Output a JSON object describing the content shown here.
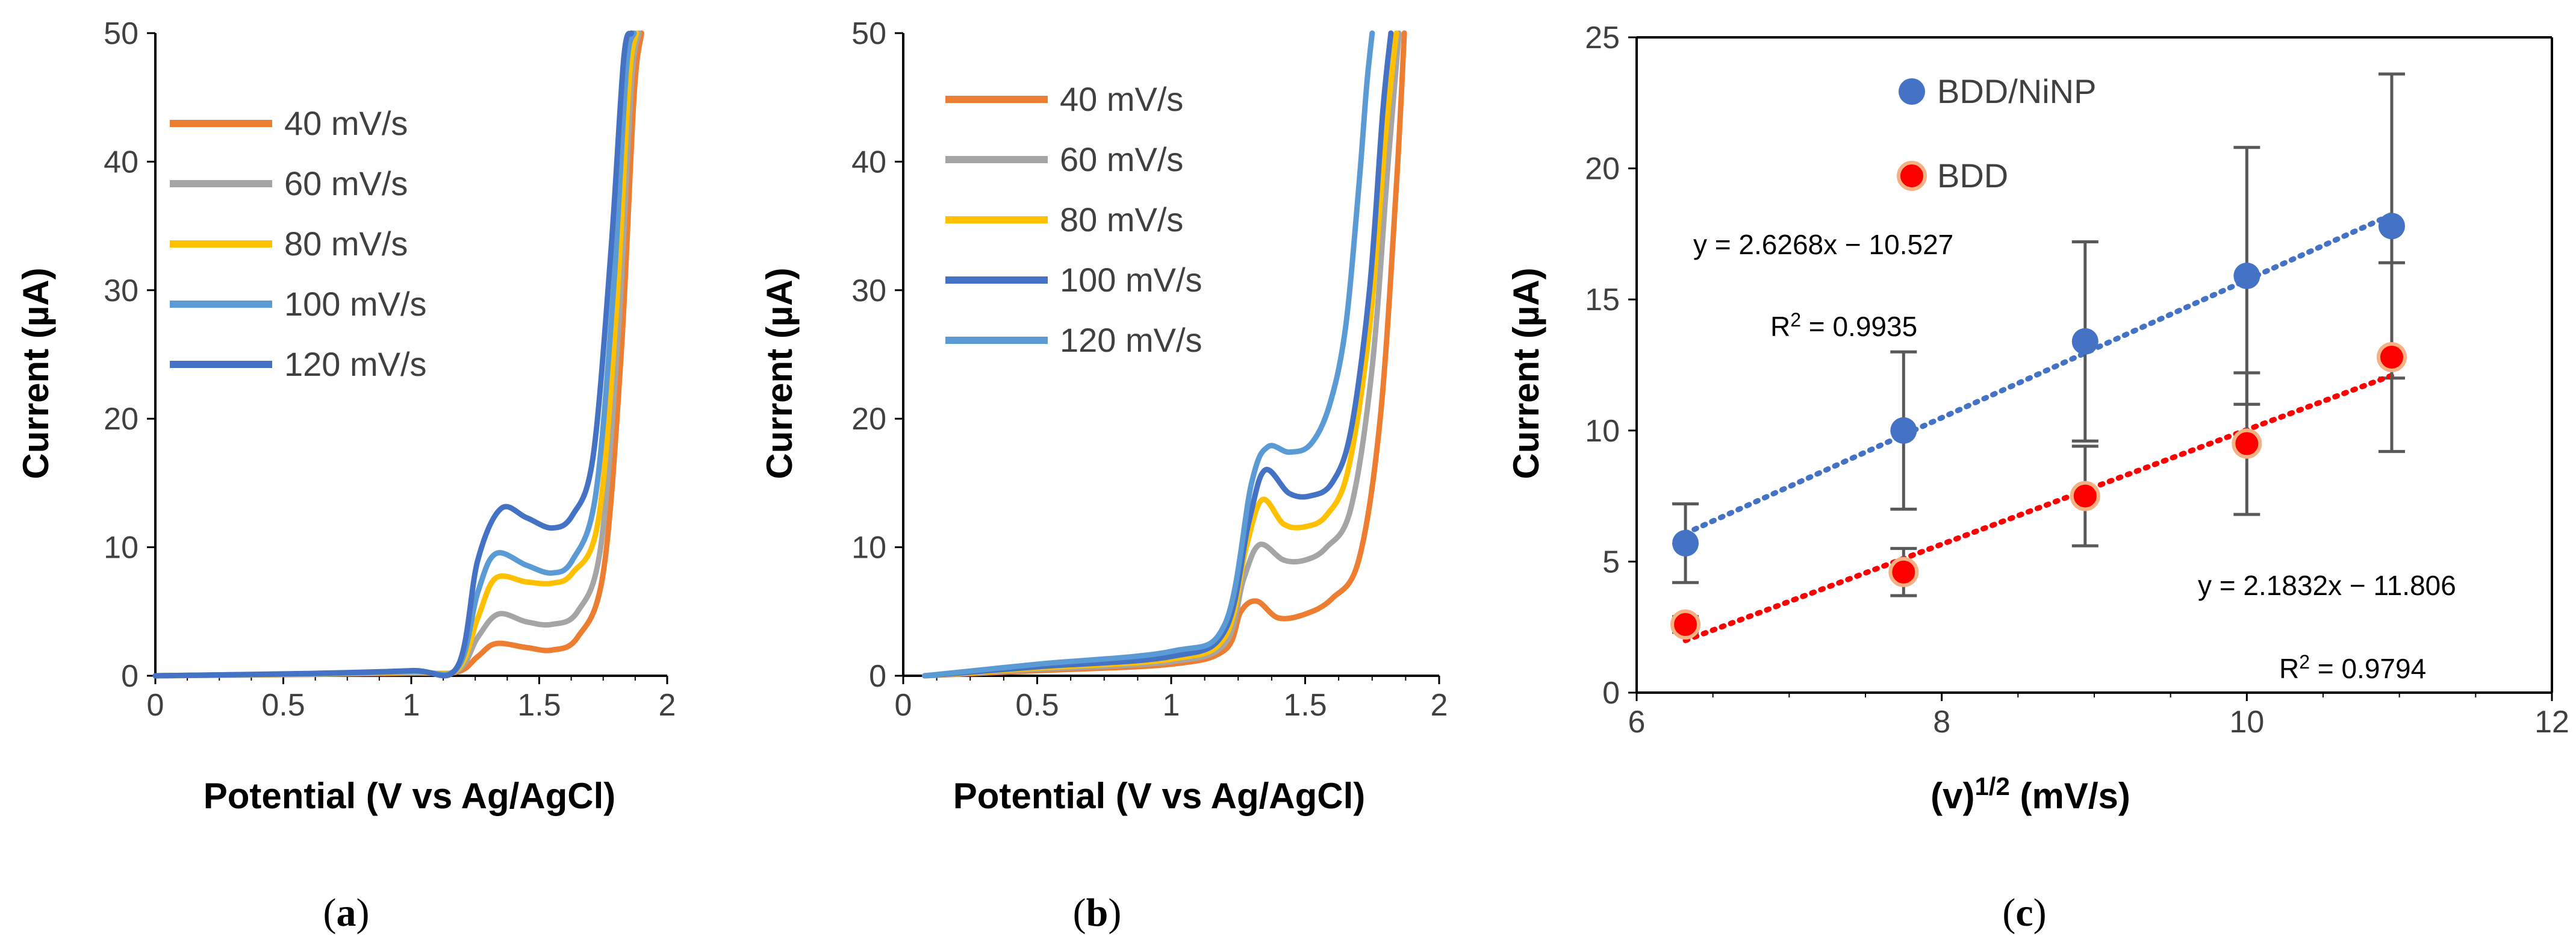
{
  "chart_data": [
    {
      "type": "line",
      "panel_label": "a",
      "xlabel": "Potential (V vs Ag/AgCl)",
      "ylabel": "Current (µA)",
      "xlim": [
        0,
        2
      ],
      "ylim": [
        0,
        50
      ],
      "x_ticks": [
        "0",
        "0.5",
        "1",
        "1.5",
        "2"
      ],
      "y_ticks": [
        "0",
        "10",
        "20",
        "30",
        "40",
        "50"
      ],
      "legend_position": "top-left",
      "series": [
        {
          "name": "40 mV/s",
          "color": "#ED7D31",
          "points": [
            [
              0,
              0
            ],
            [
              0.6,
              0.1
            ],
            [
              1.0,
              0.2
            ],
            [
              1.18,
              0.3
            ],
            [
              1.26,
              1.5
            ],
            [
              1.33,
              2.5
            ],
            [
              1.45,
              2.2
            ],
            [
              1.55,
              2.0
            ],
            [
              1.65,
              3.0
            ],
            [
              1.75,
              8
            ],
            [
              1.82,
              25
            ],
            [
              1.87,
              45
            ],
            [
              1.9,
              50
            ]
          ]
        },
        {
          "name": "60 mV/s",
          "color": "#A5A5A5",
          "points": [
            [
              0,
              0
            ],
            [
              0.6,
              0.12
            ],
            [
              1.0,
              0.25
            ],
            [
              1.18,
              0.4
            ],
            [
              1.26,
              3.0
            ],
            [
              1.34,
              4.8
            ],
            [
              1.45,
              4.2
            ],
            [
              1.55,
              4.0
            ],
            [
              1.65,
              5.0
            ],
            [
              1.74,
              10
            ],
            [
              1.81,
              27
            ],
            [
              1.86,
              46
            ],
            [
              1.89,
              50
            ]
          ]
        },
        {
          "name": "80 mV/s",
          "color": "#FFC000",
          "points": [
            [
              0,
              0
            ],
            [
              0.6,
              0.14
            ],
            [
              1.0,
              0.3
            ],
            [
              1.18,
              0.5
            ],
            [
              1.26,
              4.5
            ],
            [
              1.33,
              7.6
            ],
            [
              1.45,
              7.3
            ],
            [
              1.55,
              7.2
            ],
            [
              1.63,
              8
            ],
            [
              1.73,
              12
            ],
            [
              1.8,
              28
            ],
            [
              1.85,
              46
            ],
            [
              1.88,
              50
            ]
          ]
        },
        {
          "name": "100 mV/s",
          "color": "#5B9BD5",
          "points": [
            [
              0,
              0
            ],
            [
              0.6,
              0.16
            ],
            [
              1.0,
              0.35
            ],
            [
              1.18,
              0.6
            ],
            [
              1.26,
              6.5
            ],
            [
              1.33,
              9.5
            ],
            [
              1.45,
              8.6
            ],
            [
              1.55,
              8.0
            ],
            [
              1.63,
              9
            ],
            [
              1.72,
              14
            ],
            [
              1.79,
              30
            ],
            [
              1.84,
              47
            ],
            [
              1.87,
              50
            ]
          ]
        },
        {
          "name": "120 mV/s",
          "color": "#4472C4",
          "points": [
            [
              0,
              0
            ],
            [
              0.6,
              0.18
            ],
            [
              1.0,
              0.4
            ],
            [
              1.18,
              0.7
            ],
            [
              1.26,
              9
            ],
            [
              1.35,
              13.0
            ],
            [
              1.45,
              12.3
            ],
            [
              1.55,
              11.5
            ],
            [
              1.63,
              12.5
            ],
            [
              1.71,
              17
            ],
            [
              1.78,
              33
            ],
            [
              1.83,
              48
            ],
            [
              1.86,
              50
            ]
          ]
        }
      ]
    },
    {
      "type": "line",
      "panel_label": "b",
      "xlabel": "Potential (V vs Ag/AgCl)",
      "ylabel": "Current (µA)",
      "xlim": [
        0,
        2
      ],
      "ylim": [
        0,
        50
      ],
      "x_ticks": [
        "0",
        "0.5",
        "1",
        "1.5",
        "2"
      ],
      "y_ticks": [
        "0",
        "10",
        "20",
        "30",
        "40",
        "50"
      ],
      "legend_position": "top-left",
      "series": [
        {
          "name": "40 mV/s",
          "color": "#ED7D31",
          "points": [
            [
              0.08,
              0
            ],
            [
              0.5,
              0.4
            ],
            [
              1.0,
              0.9
            ],
            [
              1.2,
              2.0
            ],
            [
              1.26,
              5.0
            ],
            [
              1.32,
              5.8
            ],
            [
              1.4,
              4.5
            ],
            [
              1.5,
              4.8
            ],
            [
              1.6,
              6
            ],
            [
              1.7,
              9
            ],
            [
              1.78,
              20
            ],
            [
              1.84,
              38
            ],
            [
              1.87,
              50
            ]
          ]
        },
        {
          "name": "60 mV/s",
          "color": "#A5A5A5",
          "points": [
            [
              0.08,
              0
            ],
            [
              0.5,
              0.5
            ],
            [
              1.0,
              1.1
            ],
            [
              1.2,
              2.5
            ],
            [
              1.27,
              7.5
            ],
            [
              1.33,
              10.2
            ],
            [
              1.42,
              9.0
            ],
            [
              1.5,
              9.0
            ],
            [
              1.58,
              10
            ],
            [
              1.67,
              13
            ],
            [
              1.75,
              24
            ],
            [
              1.81,
              40
            ],
            [
              1.85,
              50
            ]
          ]
        },
        {
          "name": "80 mV/s",
          "color": "#FFC000",
          "points": [
            [
              0.08,
              0
            ],
            [
              0.5,
              0.6
            ],
            [
              1.0,
              1.3
            ],
            [
              1.2,
              3.0
            ],
            [
              1.28,
              10
            ],
            [
              1.34,
              13.7
            ],
            [
              1.42,
              11.8
            ],
            [
              1.5,
              11.6
            ],
            [
              1.58,
              12.5
            ],
            [
              1.66,
              16
            ],
            [
              1.74,
              27
            ],
            [
              1.8,
              42
            ],
            [
              1.84,
              50
            ]
          ]
        },
        {
          "name": "100 mV/s",
          "color": "#4472C4",
          "points": [
            [
              0.08,
              0
            ],
            [
              0.5,
              0.7
            ],
            [
              1.0,
              1.5
            ],
            [
              1.2,
              3.5
            ],
            [
              1.29,
              12
            ],
            [
              1.35,
              16
            ],
            [
              1.44,
              14.2
            ],
            [
              1.52,
              14.0
            ],
            [
              1.6,
              15
            ],
            [
              1.67,
              19
            ],
            [
              1.74,
              30
            ],
            [
              1.79,
              44
            ],
            [
              1.82,
              50
            ]
          ]
        },
        {
          "name": "120 mV/s",
          "color": "#5B9BD5",
          "points": [
            [
              0.08,
              0
            ],
            [
              0.5,
              0.9
            ],
            [
              1.0,
              1.9
            ],
            [
              1.2,
              4.0
            ],
            [
              1.3,
              15
            ],
            [
              1.36,
              17.8
            ],
            [
              1.44,
              17.4
            ],
            [
              1.52,
              18
            ],
            [
              1.59,
              21
            ],
            [
              1.65,
              27
            ],
            [
              1.7,
              38
            ],
            [
              1.73,
              46
            ],
            [
              1.75,
              50
            ]
          ]
        }
      ]
    },
    {
      "type": "scatter",
      "panel_label": "c",
      "xlabel_base": "(v)",
      "xlabel_sup": "1/2",
      "xlabel_unit": " (mV/s)",
      "ylabel": "Current (µA)",
      "xlim": [
        6,
        12
      ],
      "ylim": [
        0,
        25
      ],
      "x_ticks": [
        "6",
        "8",
        "10",
        "12"
      ],
      "y_ticks": [
        "0",
        "5",
        "10",
        "15",
        "20",
        "25"
      ],
      "legend_position": "top-left",
      "series": [
        {
          "name": "BDD/NiNP",
          "color": "#4472C4",
          "x": [
            6.32,
            7.75,
            8.94,
            10.0,
            10.95
          ],
          "y": [
            5.7,
            10.0,
            13.4,
            15.9,
            17.8
          ],
          "err": [
            1.5,
            3.0,
            3.8,
            4.9,
            5.8
          ],
          "fit": {
            "slope": 2.6268,
            "intercept": -10.527
          }
        },
        {
          "name": "BDD",
          "color": "#FF0000",
          "edge": "#F4B183",
          "x": [
            6.32,
            7.75,
            8.94,
            10.0,
            10.95
          ],
          "y": [
            2.6,
            4.6,
            7.5,
            9.5,
            12.8
          ],
          "err": [
            0.3,
            0.9,
            1.9,
            2.7,
            3.6
          ],
          "fit": {
            "slope": 2.1832,
            "intercept": -11.806
          }
        }
      ],
      "annotations": {
        "eq1": "y = 2.6268x − 10.527",
        "r2_1_prefix": "R",
        "r2_1_sup": "2",
        "r2_1_val": " = 0.9935",
        "eq2": "y = 2.1832x − 11.806",
        "r2_2_prefix": "R",
        "r2_2_sup": "2",
        "r2_2_val": " = 0.9794"
      }
    }
  ],
  "panel_labels": [
    {
      "open": "(",
      "letter": "a",
      "close": ")"
    },
    {
      "open": "(",
      "letter": "b",
      "close": ")"
    },
    {
      "open": "(",
      "letter": "c",
      "close": ")"
    }
  ]
}
